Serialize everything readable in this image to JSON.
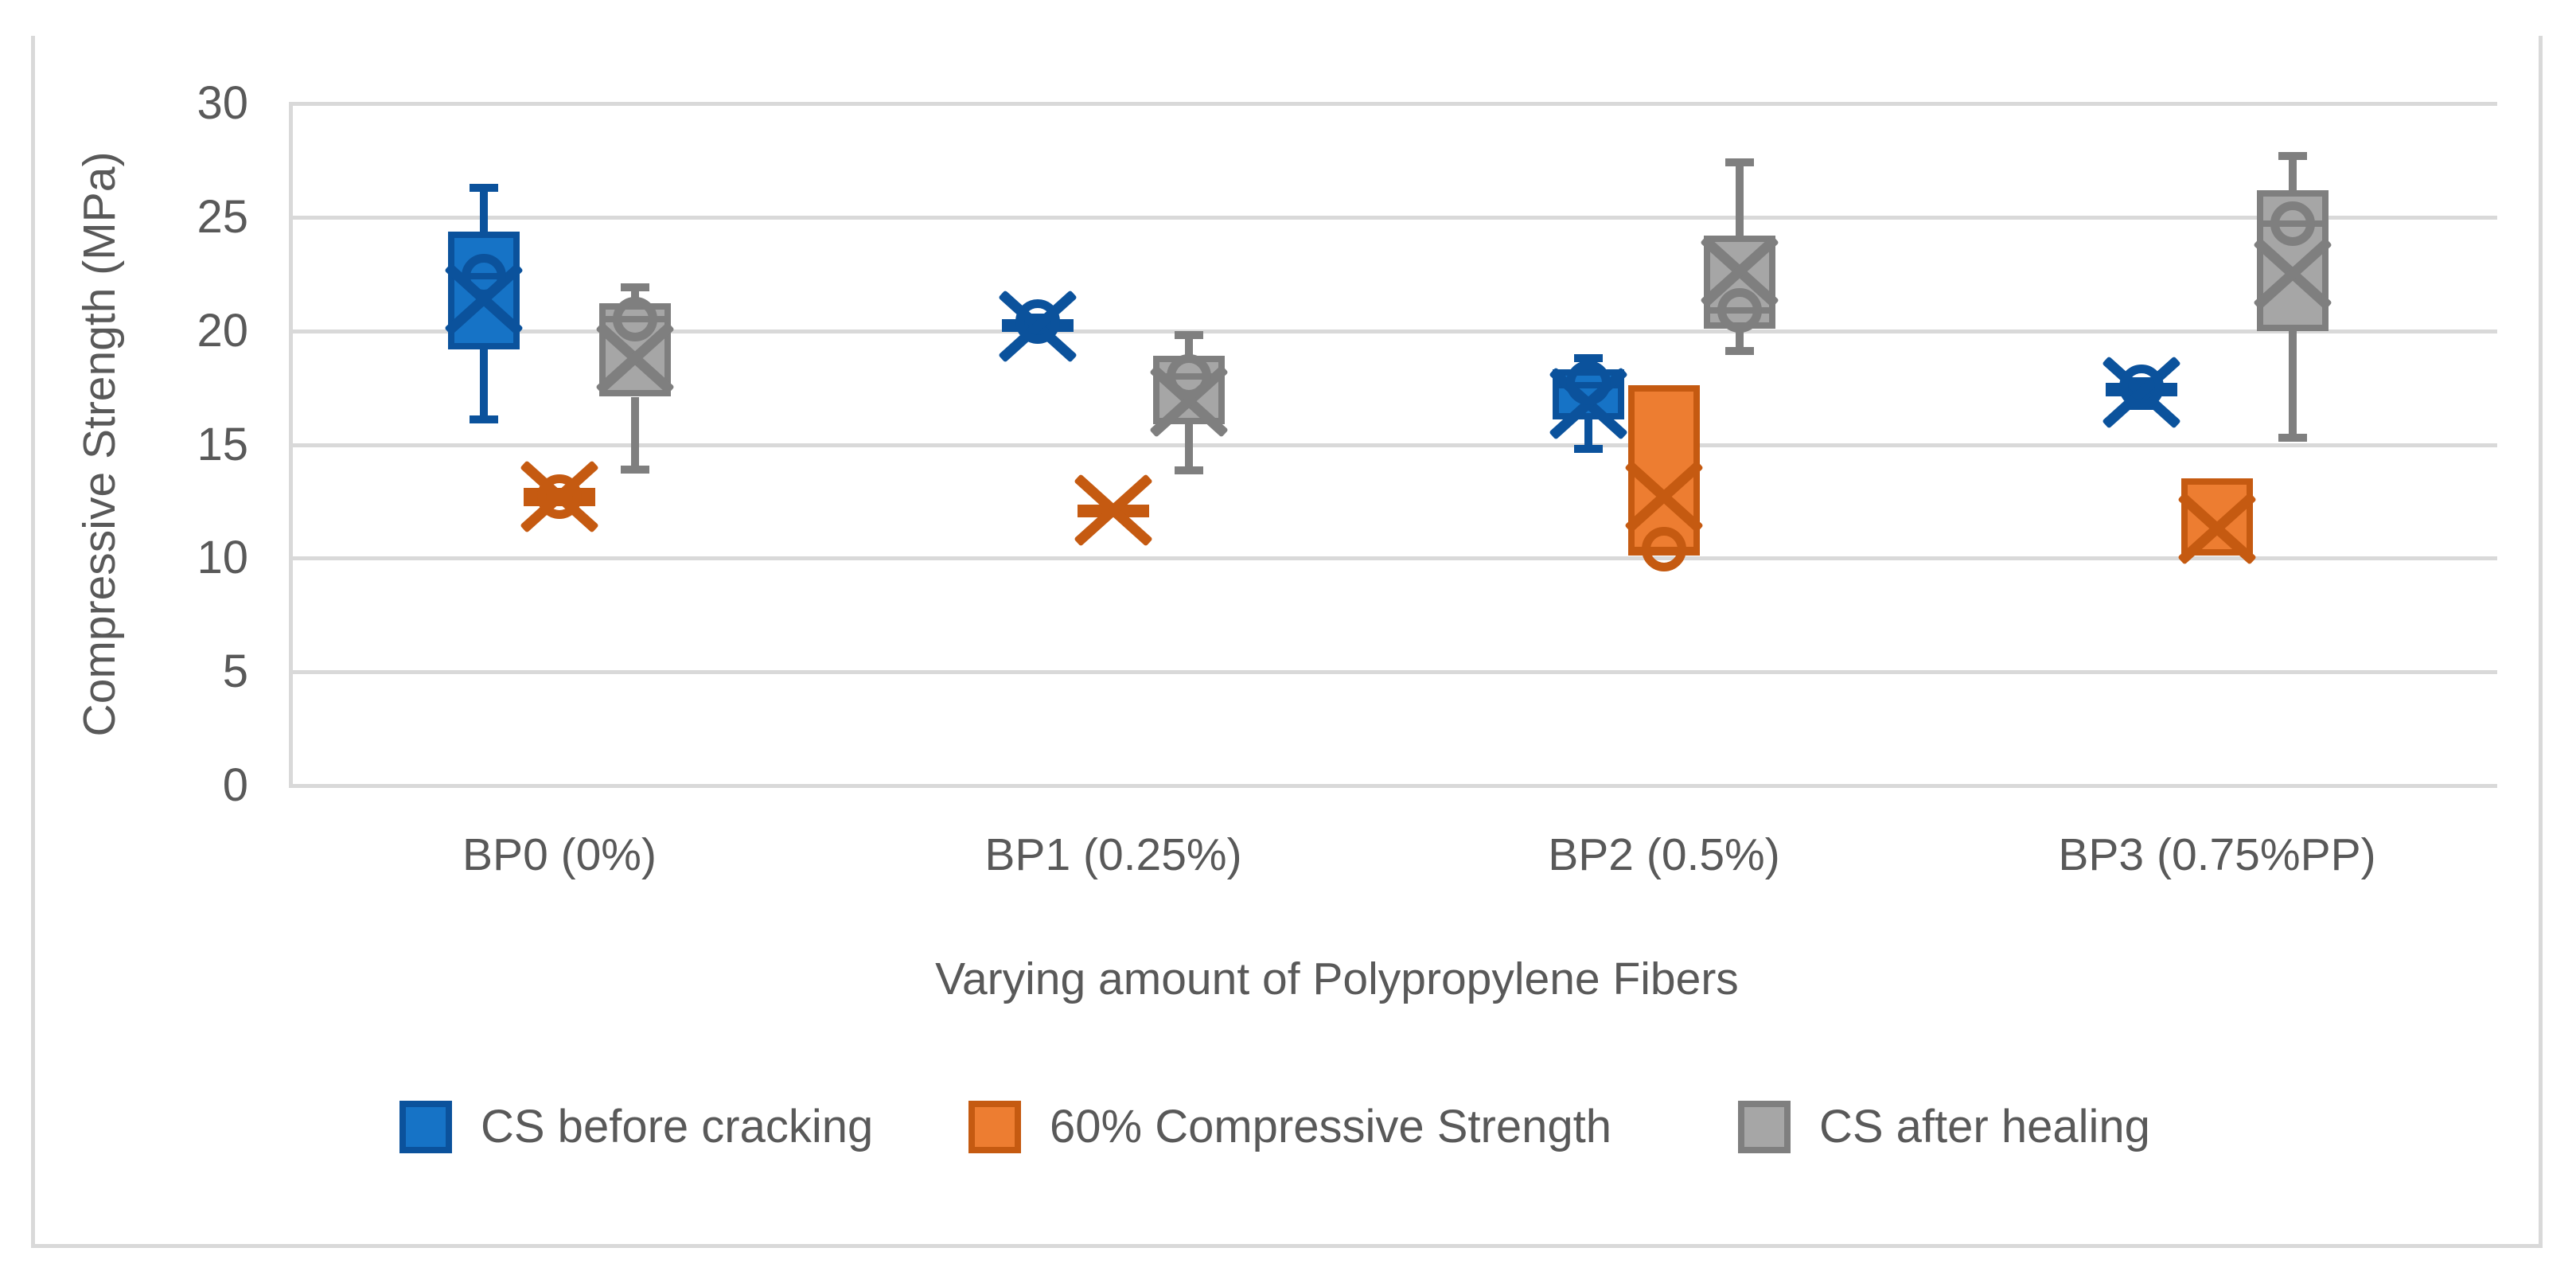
{
  "chart_data": {
    "type": "boxplot",
    "title": "",
    "xlabel": "Varying amount of Polypropylene Fibers",
    "ylabel": "Compressive Strength (MPa)",
    "ylim": [
      0,
      30
    ],
    "ytick_step": 5,
    "yticks": [
      "0",
      "5",
      "10",
      "15",
      "20",
      "25",
      "30"
    ],
    "grid": true,
    "legend_position": "bottom",
    "categories": [
      "BP0 (0%)",
      "BP1 (0.25%)",
      "BP2 (0.5%)",
      "BP3 (0.75%PP)"
    ],
    "series": [
      {
        "name": "CS before cracking",
        "fill": "#1673C6",
        "stroke": "#0B529C",
        "stats": [
          {
            "whisker_low": 16.1,
            "q1": 19.2,
            "median": 22.4,
            "q3": 24.35,
            "whisker_high": 26.3,
            "mean": 21.4,
            "outlier": 22.4
          },
          {
            "whisker_low": 19.9,
            "q1": 20.0,
            "median": 20.25,
            "q3": 20.5,
            "whisker_high": 20.6,
            "mean": 20.2,
            "outlier": 20.4
          },
          {
            "whisker_low": 14.8,
            "q1": 16.1,
            "median": 17.6,
            "q3": 18.3,
            "whisker_high": 18.8,
            "mean": 16.8,
            "outlier": 17.7
          },
          {
            "whisker_low": 16.7,
            "q1": 17.1,
            "median": 17.4,
            "q3": 17.7,
            "whisker_high": 17.8,
            "mean": 17.3,
            "outlier": 17.55
          }
        ]
      },
      {
        "name": "60% Compressive Strength",
        "fill": "#ED7D31",
        "stroke": "#C55A11",
        "stats": [
          {
            "whisker_low": null,
            "q1": 12.3,
            "median": 12.7,
            "q3": 13.1,
            "whisker_high": null,
            "mean": 12.7,
            "outlier": 12.7
          },
          {
            "whisker_low": null,
            "q1": 11.85,
            "median": 12.1,
            "q3": 12.35,
            "whisker_high": null,
            "mean": 12.1,
            "outlier": null
          },
          {
            "whisker_low": null,
            "q1": 10.1,
            "median": 10.35,
            "q3": 17.6,
            "whisker_high": null,
            "mean": 12.7,
            "outlier": 10.4
          },
          {
            "whisker_low": null,
            "q1": 10.1,
            "median": 10.25,
            "q3": 13.5,
            "whisker_high": null,
            "mean": 11.3,
            "outlier": null
          }
        ]
      },
      {
        "name": "CS after healing",
        "fill": "#A6A6A6",
        "stroke": "#7F7F7F",
        "stats": [
          {
            "whisker_low": 13.9,
            "q1": 17.1,
            "median": 20.5,
            "q3": 21.2,
            "whisker_high": 21.9,
            "mean": 18.8,
            "outlier": 20.5
          },
          {
            "whisker_low": 13.85,
            "q1": 15.9,
            "median": 18.0,
            "q3": 18.9,
            "whisker_high": 19.8,
            "mean": 16.9,
            "outlier": 18.0
          },
          {
            "whisker_low": 19.1,
            "q1": 20.1,
            "median": 20.9,
            "q3": 24.2,
            "whisker_high": 27.4,
            "mean": 22.6,
            "outlier": 20.9
          },
          {
            "whisker_low": 15.3,
            "q1": 20.0,
            "median": 24.7,
            "q3": 26.2,
            "whisker_high": 27.7,
            "mean": 22.5,
            "outlier": 24.7
          }
        ]
      }
    ]
  },
  "colors": {
    "background": "#FFFFFF",
    "gridline": "#D9D9D9",
    "chart_border": "#D9D9D9",
    "text": "#595959"
  }
}
